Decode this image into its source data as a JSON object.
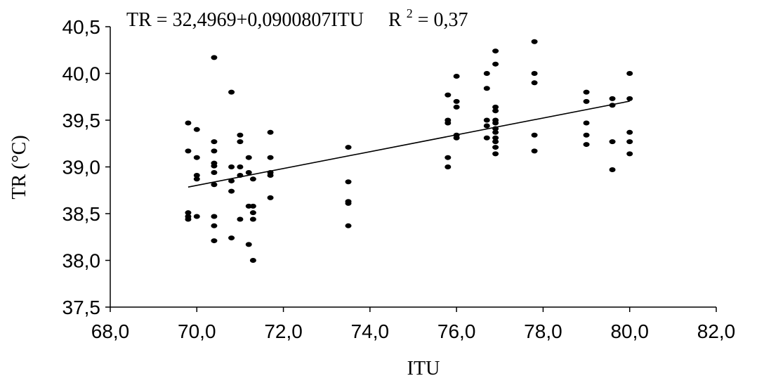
{
  "chart_data": {
    "type": "scatter",
    "title": "",
    "xlabel": "ITU",
    "ylabel": "TR (°C)",
    "xlim": [
      68,
      82
    ],
    "ylim": [
      37.5,
      40.5
    ],
    "x_ticks": [
      "68,0",
      "70,0",
      "72,0",
      "74,0",
      "76,0",
      "78,0",
      "80,0",
      "82,0"
    ],
    "y_ticks": [
      "37,5",
      "38,0",
      "38,5",
      "39,0",
      "39,5",
      "40,0",
      "40,5"
    ],
    "grid": false,
    "equation": {
      "main": "TR = 32,4969+0,0900807ITU",
      "r2_label": "R",
      "r2_sup": "2",
      "r2_value": " = 0,37"
    },
    "trendline": {
      "intercept": 32.4969,
      "slope": 0.0900807,
      "x_start": 69.8,
      "x_end": 80.0
    },
    "points": [
      [
        69.8,
        39.47
      ],
      [
        69.8,
        39.17
      ],
      [
        69.8,
        38.51
      ],
      [
        69.8,
        38.47
      ],
      [
        69.8,
        38.44
      ],
      [
        70.0,
        39.4
      ],
      [
        70.0,
        39.1
      ],
      [
        70.0,
        38.91
      ],
      [
        70.0,
        38.87
      ],
      [
        70.0,
        38.47
      ],
      [
        70.4,
        40.17
      ],
      [
        70.4,
        39.27
      ],
      [
        70.4,
        39.17
      ],
      [
        70.4,
        39.04
      ],
      [
        70.4,
        39.01
      ],
      [
        70.4,
        38.94
      ],
      [
        70.4,
        38.81
      ],
      [
        70.4,
        38.47
      ],
      [
        70.4,
        38.37
      ],
      [
        70.4,
        38.21
      ],
      [
        70.8,
        39.8
      ],
      [
        70.8,
        39.0
      ],
      [
        70.8,
        38.85
      ],
      [
        70.8,
        38.74
      ],
      [
        70.8,
        38.24
      ],
      [
        71.0,
        39.34
      ],
      [
        71.0,
        39.27
      ],
      [
        71.0,
        39.0
      ],
      [
        71.0,
        38.91
      ],
      [
        71.0,
        38.44
      ],
      [
        71.2,
        39.1
      ],
      [
        71.2,
        38.94
      ],
      [
        71.2,
        38.58
      ],
      [
        71.2,
        38.17
      ],
      [
        71.3,
        38.87
      ],
      [
        71.3,
        38.58
      ],
      [
        71.3,
        38.51
      ],
      [
        71.3,
        38.44
      ],
      [
        71.3,
        38.0
      ],
      [
        71.7,
        39.37
      ],
      [
        71.7,
        39.1
      ],
      [
        71.7,
        38.94
      ],
      [
        71.7,
        38.91
      ],
      [
        71.7,
        38.67
      ],
      [
        73.5,
        39.21
      ],
      [
        73.5,
        38.84
      ],
      [
        73.5,
        38.63
      ],
      [
        73.5,
        38.61
      ],
      [
        73.5,
        38.37
      ],
      [
        75.8,
        39.77
      ],
      [
        75.8,
        39.5
      ],
      [
        75.8,
        39.47
      ],
      [
        75.8,
        39.1
      ],
      [
        75.8,
        39.0
      ],
      [
        76.0,
        39.97
      ],
      [
        76.0,
        39.7
      ],
      [
        76.0,
        39.64
      ],
      [
        76.0,
        39.34
      ],
      [
        76.0,
        39.31
      ],
      [
        76.7,
        40.0
      ],
      [
        76.7,
        39.84
      ],
      [
        76.7,
        39.5
      ],
      [
        76.7,
        39.44
      ],
      [
        76.7,
        39.31
      ],
      [
        76.9,
        40.24
      ],
      [
        76.9,
        40.1
      ],
      [
        76.9,
        39.64
      ],
      [
        76.9,
        39.6
      ],
      [
        76.9,
        39.5
      ],
      [
        76.9,
        39.47
      ],
      [
        76.9,
        39.41
      ],
      [
        76.9,
        39.37
      ],
      [
        76.9,
        39.31
      ],
      [
        76.9,
        39.27
      ],
      [
        76.9,
        39.21
      ],
      [
        76.9,
        39.14
      ],
      [
        77.8,
        40.34
      ],
      [
        77.8,
        40.0
      ],
      [
        77.8,
        39.9
      ],
      [
        77.8,
        39.34
      ],
      [
        77.8,
        39.17
      ],
      [
        79.0,
        39.8
      ],
      [
        79.0,
        39.7
      ],
      [
        79.0,
        39.47
      ],
      [
        79.0,
        39.34
      ],
      [
        79.0,
        39.24
      ],
      [
        79.6,
        39.73
      ],
      [
        79.6,
        39.66
      ],
      [
        79.6,
        39.27
      ],
      [
        79.6,
        38.97
      ],
      [
        80.0,
        40.0
      ],
      [
        80.0,
        39.73
      ],
      [
        80.0,
        39.37
      ],
      [
        80.0,
        39.27
      ],
      [
        80.0,
        39.14
      ]
    ]
  }
}
